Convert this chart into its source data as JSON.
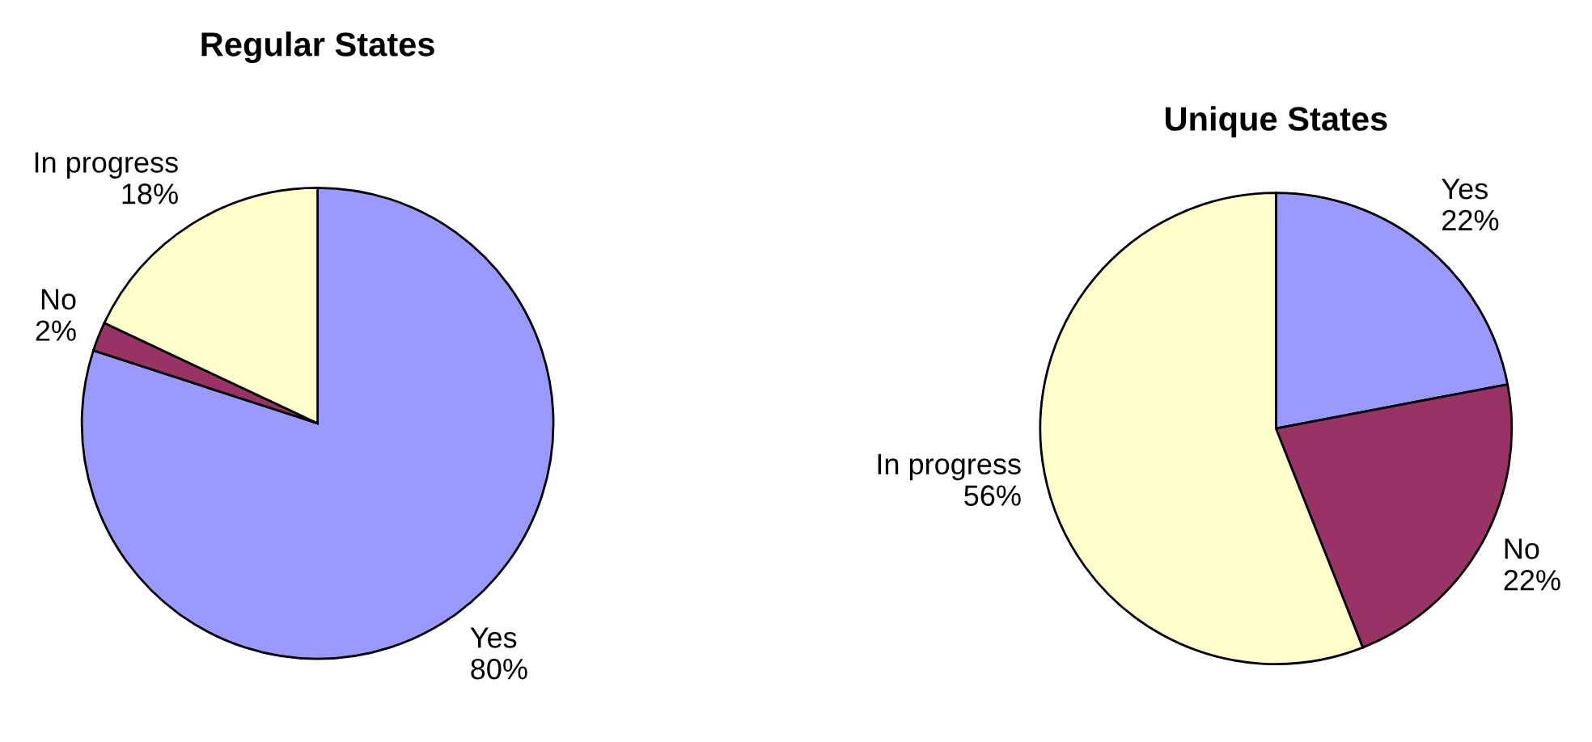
{
  "chart_data": [
    {
      "type": "pie",
      "title": "Regular States",
      "categories": [
        "Yes",
        "No",
        "In progress"
      ],
      "values": [
        80,
        2,
        18
      ],
      "value_labels": [
        "80%",
        "2%",
        "18%"
      ],
      "colors": [
        "#9999ff",
        "#993366",
        "#ffffcc"
      ],
      "legend": false
    },
    {
      "type": "pie",
      "title": "Unique States",
      "categories": [
        "Yes",
        "No",
        "In progress"
      ],
      "values": [
        22,
        22,
        56
      ],
      "value_labels": [
        "22%",
        "22%",
        "56%"
      ],
      "colors": [
        "#9999ff",
        "#993366",
        "#ffffcc"
      ],
      "legend": false
    }
  ]
}
